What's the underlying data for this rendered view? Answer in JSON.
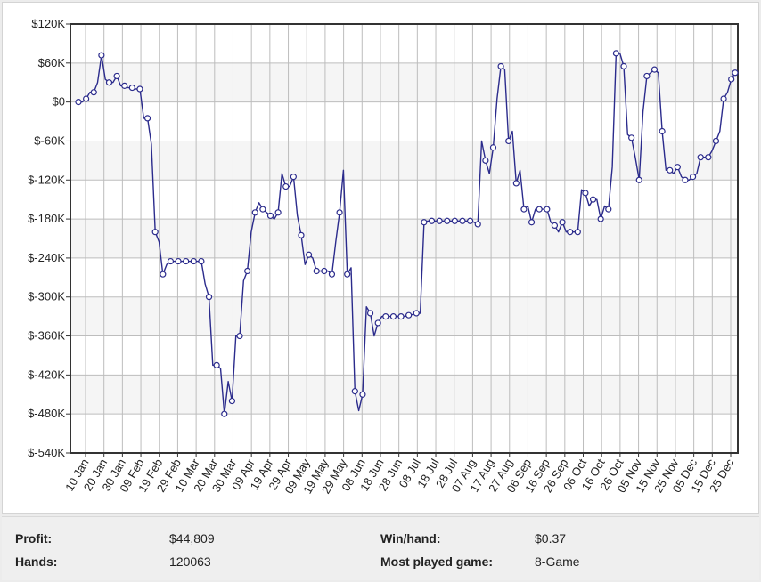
{
  "chart_data": {
    "type": "line",
    "title": "",
    "xlabel": "",
    "ylabel": "",
    "ylim": [
      -540000,
      120000
    ],
    "y_ticks": [
      {
        "value": 120000,
        "label": "$120K"
      },
      {
        "value": 60000,
        "label": "$60K"
      },
      {
        "value": 0,
        "label": "$0"
      },
      {
        "value": -60000,
        "label": "$-60K"
      },
      {
        "value": -120000,
        "label": "$-120K"
      },
      {
        "value": -180000,
        "label": "$-180K"
      },
      {
        "value": -240000,
        "label": "$-240K"
      },
      {
        "value": -300000,
        "label": "$-300K"
      },
      {
        "value": -360000,
        "label": "$-360K"
      },
      {
        "value": -420000,
        "label": "$-420K"
      },
      {
        "value": -480000,
        "label": "$-480K"
      },
      {
        "value": -540000,
        "label": "$-540K"
      }
    ],
    "x_tick_labels": [
      "10 Jan",
      "20 Jan",
      "30 Jan",
      "09 Feb",
      "19 Feb",
      "29 Feb",
      "10 Mar",
      "20 Mar",
      "30 Mar",
      "09 Apr",
      "19 Apr",
      "29 Apr",
      "09 May",
      "19 May",
      "29 May",
      "08 Jun",
      "18 Jun",
      "28 Jun",
      "08 Jul",
      "18 Jul",
      "28 Jul",
      "07 Aug",
      "17 Aug",
      "27 Aug",
      "06 Sep",
      "16 Sep",
      "26 Sep",
      "06 Oct",
      "16 Oct",
      "26 Oct",
      "05 Nov",
      "15 Nov",
      "25 Nov",
      "05 Dec",
      "15 Dec",
      "25 Dec"
    ],
    "grid": true,
    "line_color": "#2b2b8c",
    "plot_background": "#f5f5f5",
    "series": [
      {
        "values": [
          0,
          0,
          5000,
          15000,
          15000,
          30000,
          72000,
          35000,
          30000,
          30000,
          40000,
          25000,
          25000,
          22000,
          22000,
          20000,
          20000,
          -25000,
          -25000,
          -65000,
          -200000,
          -215000,
          -265000,
          -250000,
          -245000,
          -245000,
          -245000,
          -245000,
          -245000,
          -245000,
          -245000,
          -245000,
          -245000,
          -280000,
          -300000,
          -405000,
          -405000,
          -410000,
          -480000,
          -430000,
          -460000,
          -360000,
          -360000,
          -275000,
          -260000,
          -200000,
          -170000,
          -155000,
          -165000,
          -170000,
          -175000,
          -180000,
          -170000,
          -110000,
          -130000,
          -130000,
          -115000,
          -175000,
          -205000,
          -250000,
          -235000,
          -240000,
          -260000,
          -260000,
          -260000,
          -260000,
          -265000,
          -215000,
          -170000,
          -105000,
          -265000,
          -255000,
          -445000,
          -475000,
          -450000,
          -315000,
          -325000,
          -360000,
          -340000,
          -330000,
          -330000,
          -330000,
          -330000,
          -330000,
          -330000,
          -330000,
          -328000,
          -327000,
          -325000,
          -325000,
          -185000,
          -183000,
          -183000,
          -183000,
          -183000,
          -183000,
          -183000,
          -183000,
          -183000,
          -183000,
          -183000,
          -183000,
          -183000,
          -185000,
          -188000,
          -60000,
          -90000,
          -110000,
          -70000,
          5000,
          55000,
          50000,
          -60000,
          -45000,
          -125000,
          -105000,
          -165000,
          -160000,
          -185000,
          -165000,
          -165000,
          -165000,
          -165000,
          -185000,
          -190000,
          -200000,
          -185000,
          -200000,
          -200000,
          -200000,
          -200000,
          -135000,
          -140000,
          -160000,
          -150000,
          -150000,
          -180000,
          -160000,
          -165000,
          -100000,
          75000,
          75000,
          55000,
          -50000,
          -55000,
          -85000,
          -120000,
          -15000,
          40000,
          45000,
          50000,
          45000,
          -45000,
          -105000,
          -105000,
          -110000,
          -100000,
          -115000,
          -120000,
          -120000,
          -115000,
          -110000,
          -85000,
          -85000,
          -85000,
          -75000,
          -60000,
          -45000,
          5000,
          15000,
          35000,
          45000
        ]
      }
    ]
  },
  "stats": {
    "profit_label": "Profit:",
    "profit_value": "$44,809",
    "hands_label": "Hands:",
    "hands_value": "120063",
    "winhand_label": "Win/hand:",
    "winhand_value": "$0.37",
    "game_label": "Most played game:",
    "game_value": "8-Game"
  }
}
